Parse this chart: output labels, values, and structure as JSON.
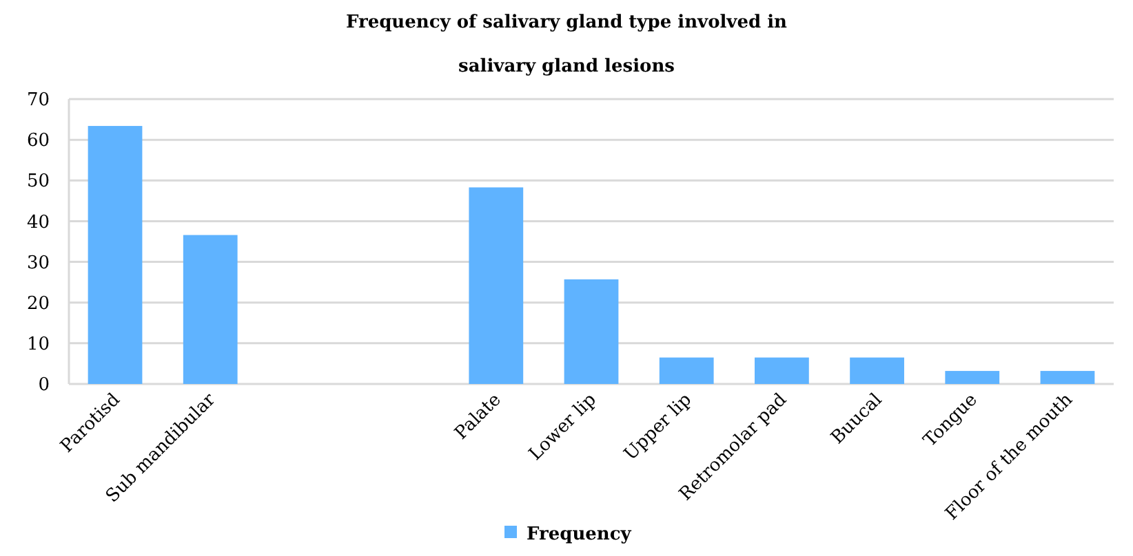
{
  "chart_data": {
    "type": "bar",
    "title": "Frequency of salivary gland type involved in salivary gland lesions",
    "categories": [
      "Parotisd",
      "Sub mandibular",
      null,
      null,
      "Palate",
      "Lower lip",
      "Upper lip",
      "Retromolar pad",
      "Buucal",
      "Tongue",
      "Floor of the mouth"
    ],
    "series": [
      {
        "name": "Frequency",
        "color": "#5fb3ff",
        "values": [
          63.4,
          36.6,
          null,
          null,
          48.3,
          25.7,
          6.5,
          6.5,
          6.5,
          3.2,
          3.2
        ]
      }
    ],
    "ylim": [
      0,
      70
    ],
    "yticks": [
      0,
      10,
      20,
      30,
      40,
      50,
      60,
      70
    ],
    "grid": "y",
    "legend": "bottom"
  }
}
